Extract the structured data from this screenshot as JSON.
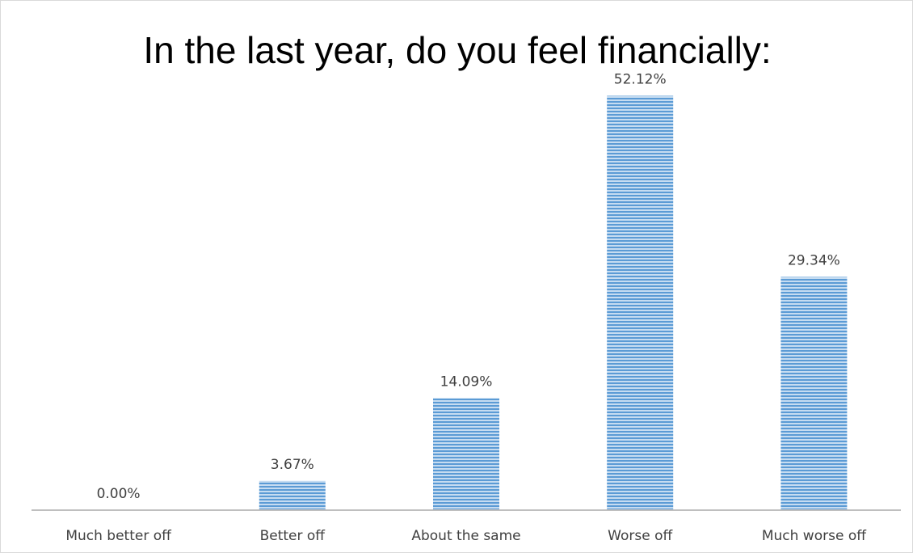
{
  "chart_data": {
    "type": "bar",
    "title": "In the last year, do you feel financially:",
    "xlabel": "",
    "ylabel": "",
    "categories": [
      "Much better off",
      "Better off",
      "About the same",
      "Worse off",
      "Much worse off"
    ],
    "values": [
      0.0,
      3.67,
      14.09,
      52.12,
      29.34
    ],
    "data_labels": [
      "0.00%",
      "3.67%",
      "14.09%",
      "52.12%",
      "29.34%"
    ],
    "unit": "%",
    "ylim": [
      0,
      60
    ],
    "grid": false,
    "legend": "none",
    "colors": {
      "bar_fill": "#9dc3e6",
      "bar_stripe": "#5b9bd5",
      "axis": "#bfbfbf"
    }
  }
}
